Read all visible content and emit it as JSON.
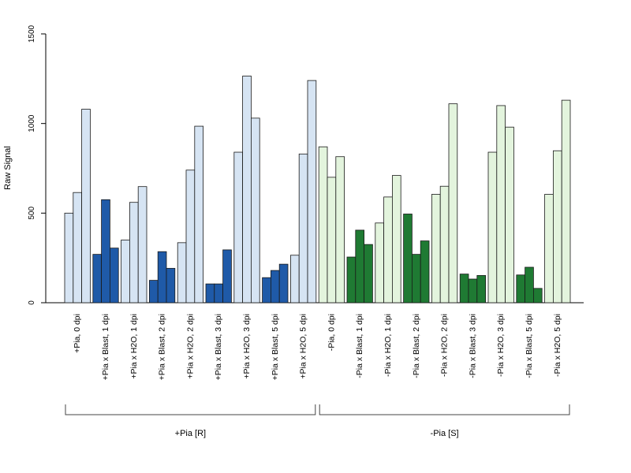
{
  "chart_data": {
    "type": "bar",
    "title": "",
    "xlabel": "",
    "ylabel": "Raw Signal",
    "ylim": [
      0,
      1500
    ],
    "yticks": [
      0,
      500,
      1000,
      1500
    ],
    "grid": false,
    "legend": "none",
    "categories": [
      "+Pia, 0 dpi",
      "+Pia x Blast, 1 dpi",
      "+Pia x H2O, 1 dpi",
      "+Pia x Blast, 2 dpi",
      "+Pia x H2O, 2 dpi",
      "+Pia x Blast, 3 dpi",
      "+Pia x H2O, 3 dpi",
      "+Pia x Blast, 5 dpi",
      "+Pia x H2O, 5 dpi",
      "-Pia, 0 dpi",
      "-Pia x Blast, 1 dpi",
      "-Pia x H2O, 1 dpi",
      "-Pia x Blast, 2 dpi",
      "-Pia x H2O, 2 dpi",
      "-Pia x Blast, 3 dpi",
      "-Pia x H2O, 3 dpi",
      "-Pia x Blast, 5 dpi",
      "-Pia x H2O, 5 dpi"
    ],
    "replicates": [
      [
        500,
        615,
        1080
      ],
      [
        270,
        575,
        305
      ],
      [
        350,
        560,
        648
      ],
      [
        125,
        285,
        192
      ],
      [
        335,
        740,
        985
      ],
      [
        105,
        105,
        295
      ],
      [
        840,
        1265,
        1030
      ],
      [
        140,
        180,
        215
      ],
      [
        265,
        830,
        1240
      ],
      [
        870,
        700,
        815
      ],
      [
        255,
        405,
        325
      ],
      [
        445,
        590,
        710
      ],
      [
        495,
        270,
        345
      ],
      [
        605,
        650,
        1110
      ],
      [
        160,
        132,
        152
      ],
      [
        840,
        1100,
        980
      ],
      [
        155,
        198,
        80
      ],
      [
        605,
        848,
        1130
      ]
    ],
    "bar_colors": [
      "#d6e4f3",
      "#1f5aa8",
      "#d6e4f3",
      "#1f5aa8",
      "#d6e4f3",
      "#1f5aa8",
      "#d6e4f3",
      "#1f5aa8",
      "#d6e4f3",
      "#e3f4dd",
      "#1f7a33",
      "#e3f4dd",
      "#1f7a33",
      "#e3f4dd",
      "#1f7a33",
      "#e3f4dd",
      "#1f7a33",
      "#e3f4dd"
    ],
    "groups": [
      {
        "label": "+Pia [R]",
        "from": 0,
        "to": 8
      },
      {
        "label": "-Pia [S]",
        "from": 9,
        "to": 17
      }
    ]
  }
}
